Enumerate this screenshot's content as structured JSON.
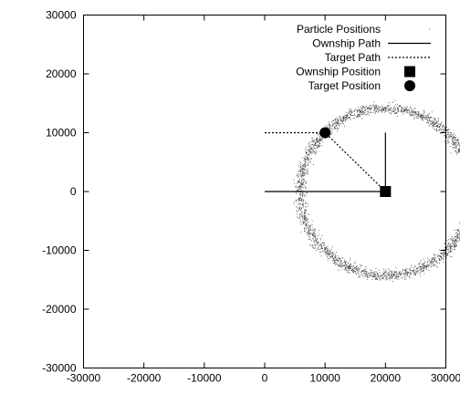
{
  "chart_data": {
    "type": "scatter",
    "title": "",
    "xlabel": "",
    "ylabel": "",
    "xlim": [
      -30000,
      30000
    ],
    "ylim": [
      -30000,
      30000
    ],
    "x_ticks": [
      -30000,
      -20000,
      -10000,
      0,
      10000,
      20000,
      30000
    ],
    "y_ticks": [
      -30000,
      -20000,
      -10000,
      0,
      10000,
      20000,
      30000
    ],
    "grid": false,
    "legend_position": "top-right",
    "legend": [
      {
        "label": "Particle Positions",
        "style": "dots"
      },
      {
        "label": "Ownship Path",
        "style": "solid-line"
      },
      {
        "label": "Target Path",
        "style": "dotted-line"
      },
      {
        "label": "Ownship Position",
        "style": "square"
      },
      {
        "label": "Target Position",
        "style": "circle"
      }
    ],
    "series": [
      {
        "name": "Ownship Path",
        "style": "solid-line",
        "points": [
          [
            0,
            0
          ],
          [
            20000,
            0
          ],
          [
            20000,
            10000
          ]
        ]
      },
      {
        "name": "Target Path",
        "style": "dotted-line",
        "points": [
          [
            0,
            10000
          ],
          [
            10000,
            10000
          ],
          [
            20000,
            0
          ]
        ]
      },
      {
        "name": "Ownship Position",
        "style": "square",
        "points": [
          [
            20000,
            0
          ]
        ]
      },
      {
        "name": "Target Position",
        "style": "circle",
        "points": [
          [
            10000,
            10000
          ]
        ]
      },
      {
        "name": "Particle Positions",
        "style": "dots",
        "distribution": {
          "center": [
            20000,
            0
          ],
          "radius": 14200,
          "spread": 450,
          "arc_start_deg": 28,
          "arc_end_deg": 338,
          "count": 2400
        }
      }
    ]
  }
}
